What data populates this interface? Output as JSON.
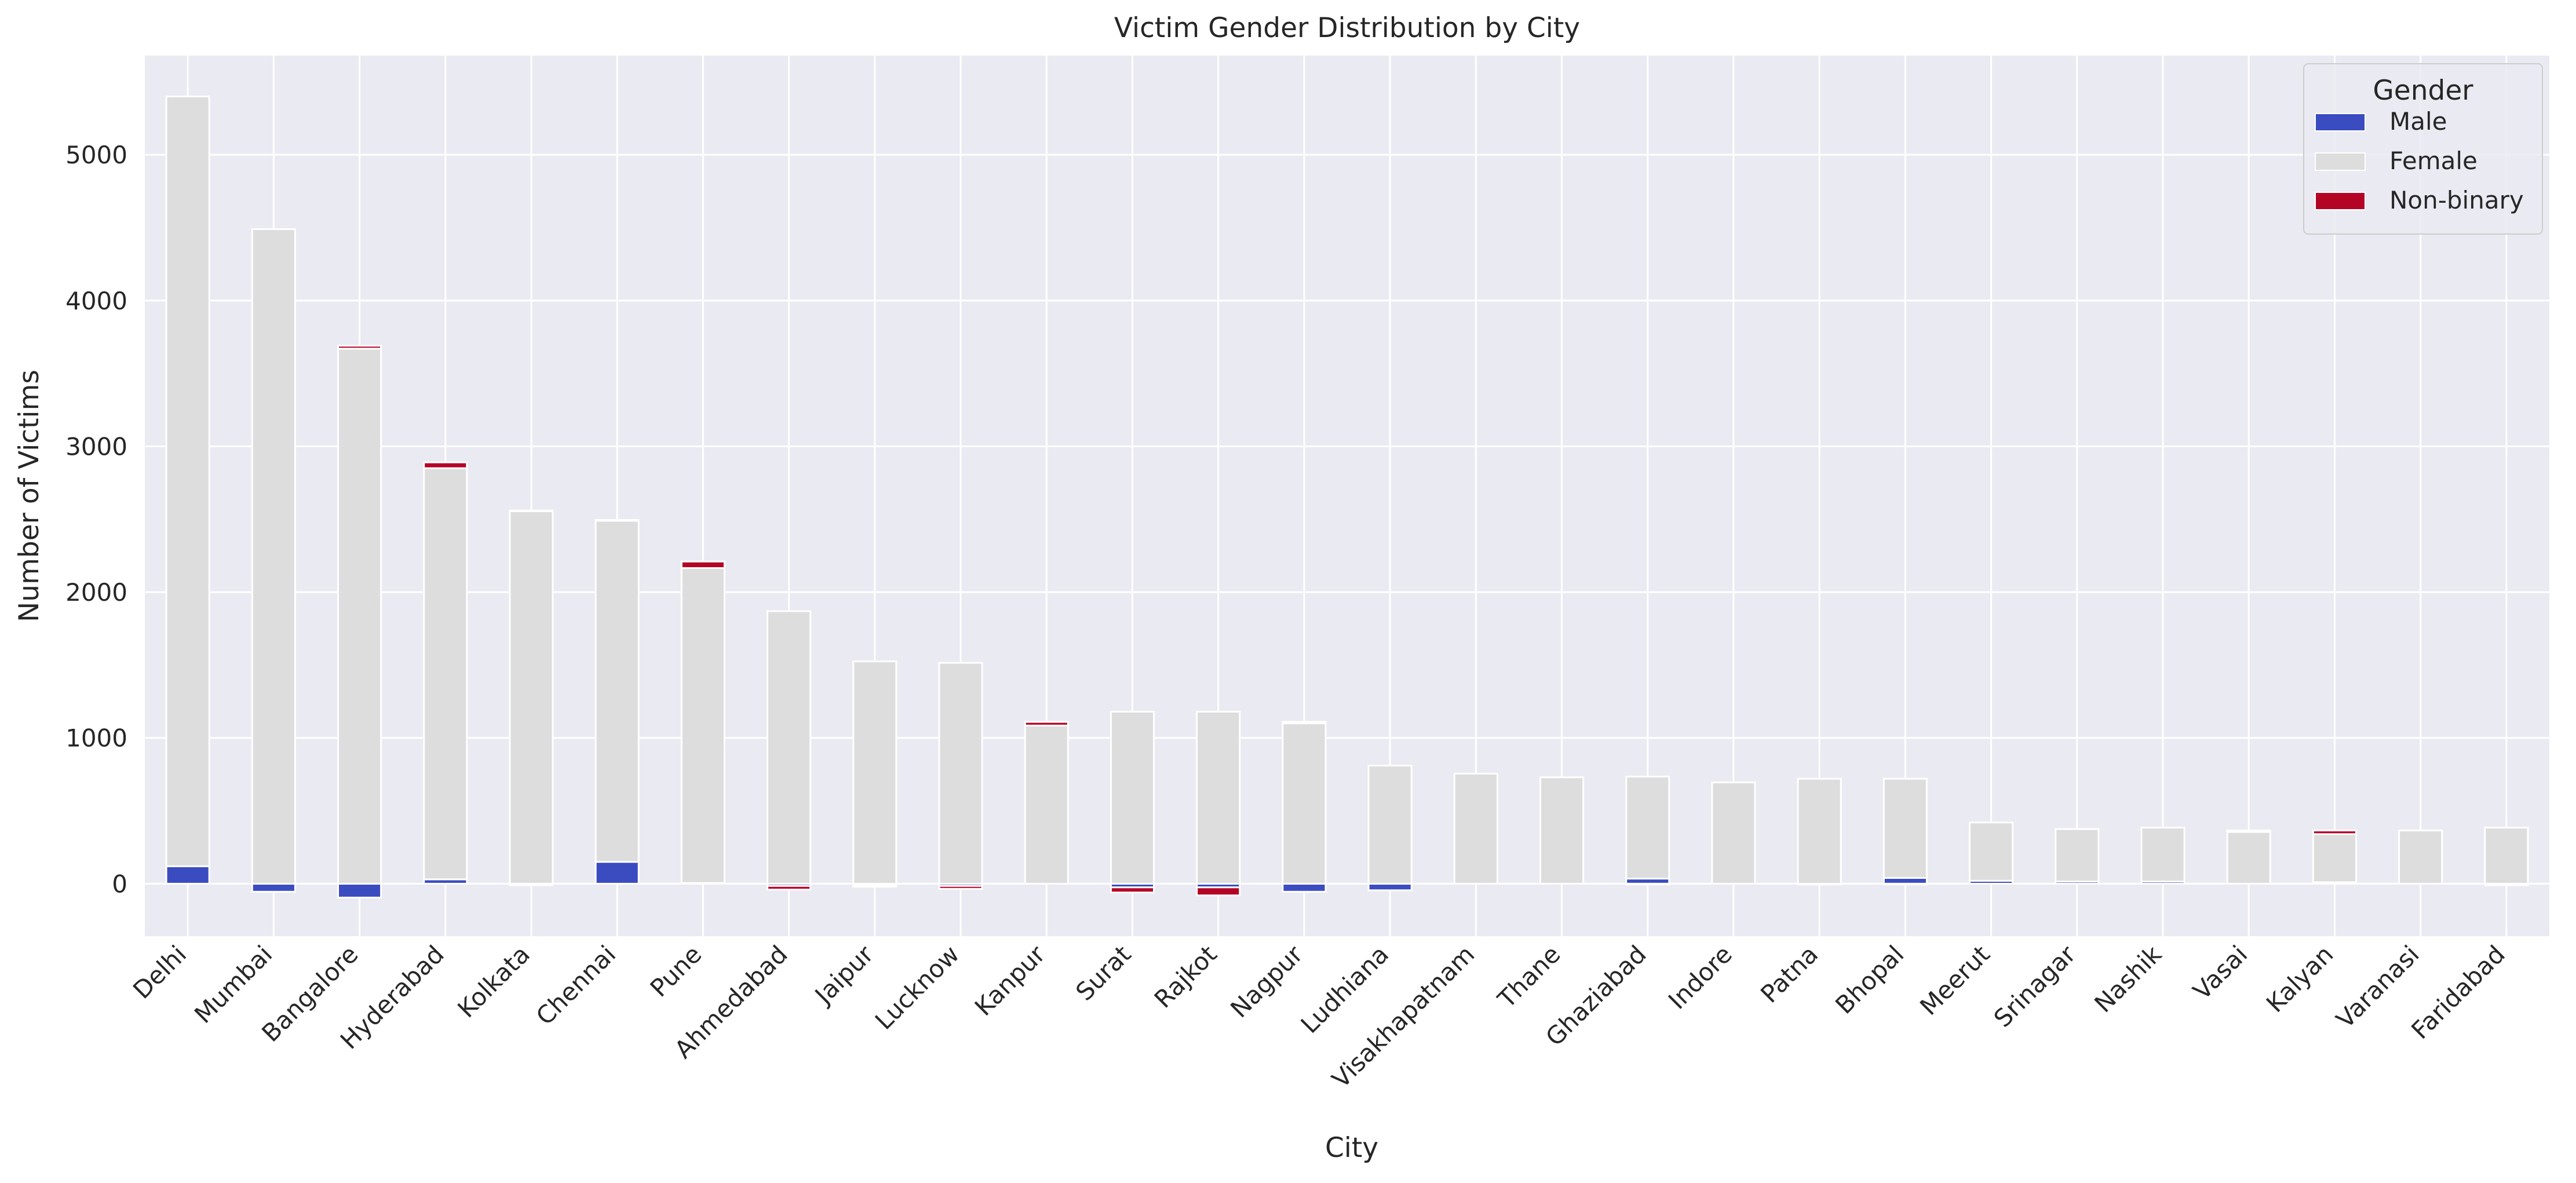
{
  "chart_data": {
    "type": "bar",
    "stacked": true,
    "title": "Victim Gender Distribution by City",
    "xlabel": "City",
    "ylabel": "Number of Victims",
    "ylim": [
      -360,
      5680
    ],
    "yticks": [
      0,
      1000,
      2000,
      3000,
      4000,
      5000
    ],
    "grid": true,
    "legend_title": "Gender",
    "legend_position": "top-right",
    "categories": [
      "Delhi",
      "Mumbai",
      "Bangalore",
      "Hyderabad",
      "Kolkata",
      "Chennai",
      "Pune",
      "Ahmedabad",
      "Jaipur",
      "Lucknow",
      "Kanpur",
      "Surat",
      "Rajkot",
      "Nagpur",
      "Ludhiana",
      "Visakhapatnam",
      "Thane",
      "Ghaziabad",
      "Indore",
      "Patna",
      "Bhopal",
      "Meerut",
      "Srinagar",
      "Nashik",
      "Vasai",
      "Kalyan",
      "Varanasi",
      "Faridabad"
    ],
    "series": [
      {
        "name": "Male",
        "color": "#3b4cc0",
        "values": [
          120,
          -55,
          -95,
          30,
          -10,
          150,
          5,
          -15,
          -10,
          -15,
          0,
          -25,
          -25,
          -55,
          -45,
          0,
          0,
          35,
          0,
          -5,
          40,
          20,
          15,
          15,
          0,
          10,
          0,
          -10
        ]
      },
      {
        "name": "Female",
        "color": "#dddddd",
        "values": [
          5280,
          4490,
          3670,
          2820,
          2555,
          2340,
          2160,
          1870,
          1525,
          1515,
          1085,
          1180,
          1180,
          1100,
          810,
          755,
          730,
          700,
          695,
          720,
          680,
          400,
          360,
          370,
          355,
          330,
          365,
          385
        ]
      },
      {
        "name": "Non-binary",
        "color": "#b40426",
        "values": [
          0,
          0,
          20,
          40,
          5,
          5,
          45,
          -25,
          -10,
          -20,
          25,
          -35,
          -55,
          10,
          0,
          0,
          0,
          -5,
          0,
          0,
          -5,
          0,
          0,
          0,
          10,
          25,
          0,
          0
        ]
      }
    ]
  }
}
